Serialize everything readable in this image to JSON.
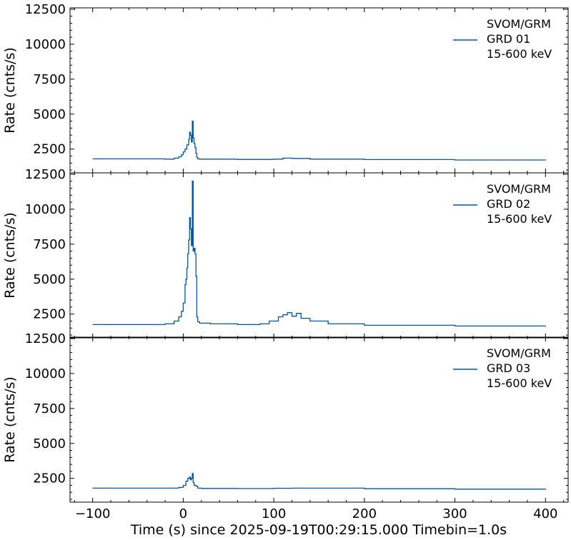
{
  "chart_data": {
    "type": "line",
    "xlabel": "Time (s) since 2025-09-19T00:29:15.000 Timebin=1.0s",
    "ylabel": "Rate (cnts/s)",
    "xlim": [
      -125,
      425
    ],
    "ylim": [
      800,
      12600
    ],
    "x_ticks": [
      -100,
      0,
      100,
      200,
      300,
      400
    ],
    "y_ticks": [
      2500,
      5000,
      7500,
      10000,
      12500
    ],
    "grid": false,
    "line_color": "#0055a8",
    "legend_position": "top-right",
    "panels": [
      {
        "legend": [
          "SVOM/GRM",
          "GRD 01",
          "15-600 keV"
        ],
        "x": [
          -100,
          -20,
          -10,
          -5,
          -2,
          0,
          2,
          4,
          6,
          7,
          8,
          9,
          10,
          11,
          12,
          13,
          14,
          15,
          16,
          18,
          25,
          60,
          100,
          110,
          120,
          140,
          200,
          300,
          400
        ],
        "y": [
          1800,
          1780,
          1850,
          1950,
          2100,
          2300,
          2500,
          2800,
          3200,
          3700,
          3500,
          3000,
          4500,
          3300,
          2900,
          2600,
          2200,
          1900,
          1800,
          1780,
          1780,
          1760,
          1780,
          1850,
          1830,
          1780,
          1750,
          1720,
          1700
        ]
      },
      {
        "legend": [
          "SVOM/GRM",
          "GRD 02",
          "15-600 keV"
        ],
        "x": [
          -100,
          -40,
          -20,
          -10,
          -5,
          -2,
          0,
          2,
          3,
          4,
          5,
          6,
          7,
          8,
          9,
          10,
          11,
          12,
          13,
          14,
          15,
          16,
          18,
          22,
          30,
          60,
          85,
          95,
          105,
          110,
          115,
          120,
          125,
          130,
          140,
          160,
          200,
          300,
          400
        ],
        "y": [
          1750,
          1750,
          1800,
          2000,
          2300,
          2700,
          3300,
          4600,
          5000,
          5800,
          6800,
          7800,
          9400,
          8600,
          7400,
          12000,
          7000,
          7200,
          6800,
          5200,
          2300,
          1950,
          1850,
          1850,
          1800,
          1750,
          1800,
          2000,
          2300,
          2450,
          2600,
          2350,
          2550,
          2200,
          2000,
          1800,
          1700,
          1650,
          1600
        ]
      },
      {
        "legend": [
          "SVOM/GRM",
          "GRD 03",
          "15-600 keV"
        ],
        "x": [
          -100,
          -20,
          -5,
          0,
          3,
          5,
          7,
          8,
          9,
          10,
          11,
          12,
          14,
          16,
          20,
          60,
          100,
          120,
          200,
          300,
          400
        ],
        "y": [
          1800,
          1800,
          1850,
          2000,
          2300,
          2500,
          2600,
          2400,
          2500,
          2850,
          2200,
          2000,
          1950,
          1800,
          1780,
          1770,
          1790,
          1800,
          1760,
          1730,
          1700
        ]
      }
    ]
  }
}
